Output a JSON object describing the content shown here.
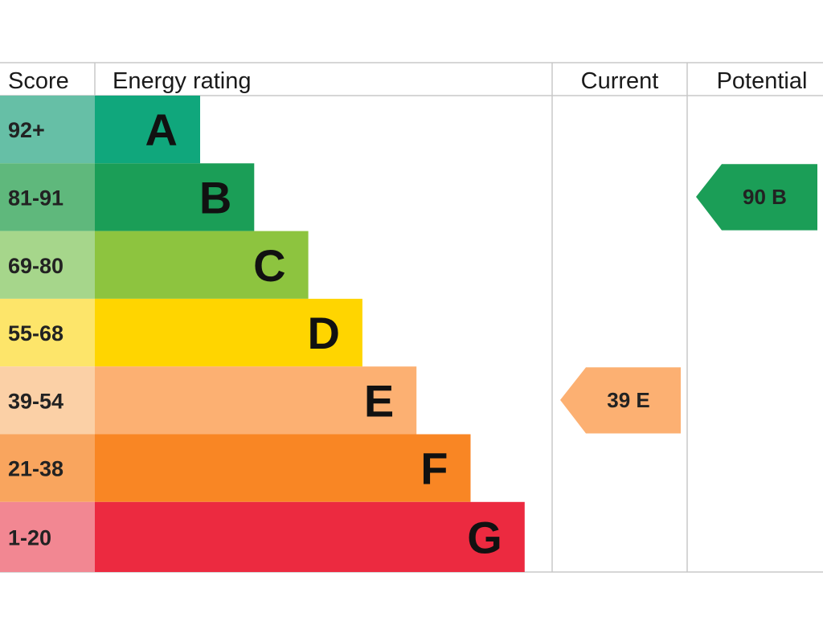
{
  "chart_data": {
    "type": "bar",
    "headers": {
      "score": "Score",
      "energy_rating": "Energy rating",
      "current": "Current",
      "potential": "Potential"
    },
    "bands": [
      {
        "range": "92+",
        "letter": "A",
        "score_color": "#66bfa6",
        "bar_color": "#10a77c"
      },
      {
        "range": "81-91",
        "letter": "B",
        "score_color": "#5fb87c",
        "bar_color": "#1b9e57"
      },
      {
        "range": "69-80",
        "letter": "C",
        "score_color": "#a6d68b",
        "bar_color": "#8dc43f"
      },
      {
        "range": "55-68",
        "letter": "D",
        "score_color": "#fde56a",
        "bar_color": "#ffd500"
      },
      {
        "range": "39-54",
        "letter": "E",
        "score_color": "#fbd0a6",
        "bar_color": "#fcb072"
      },
      {
        "range": "21-38",
        "letter": "F",
        "score_color": "#f9a55e",
        "bar_color": "#f98624"
      },
      {
        "range": "1-20",
        "letter": "G",
        "score_color": "#f28792",
        "bar_color": "#ec2a40"
      }
    ],
    "current": {
      "value": 39,
      "letter": "E",
      "label": "39  E",
      "color": "#fcb072"
    },
    "potential": {
      "value": 90,
      "letter": "B",
      "label": "90  B",
      "color": "#1b9e57"
    }
  }
}
